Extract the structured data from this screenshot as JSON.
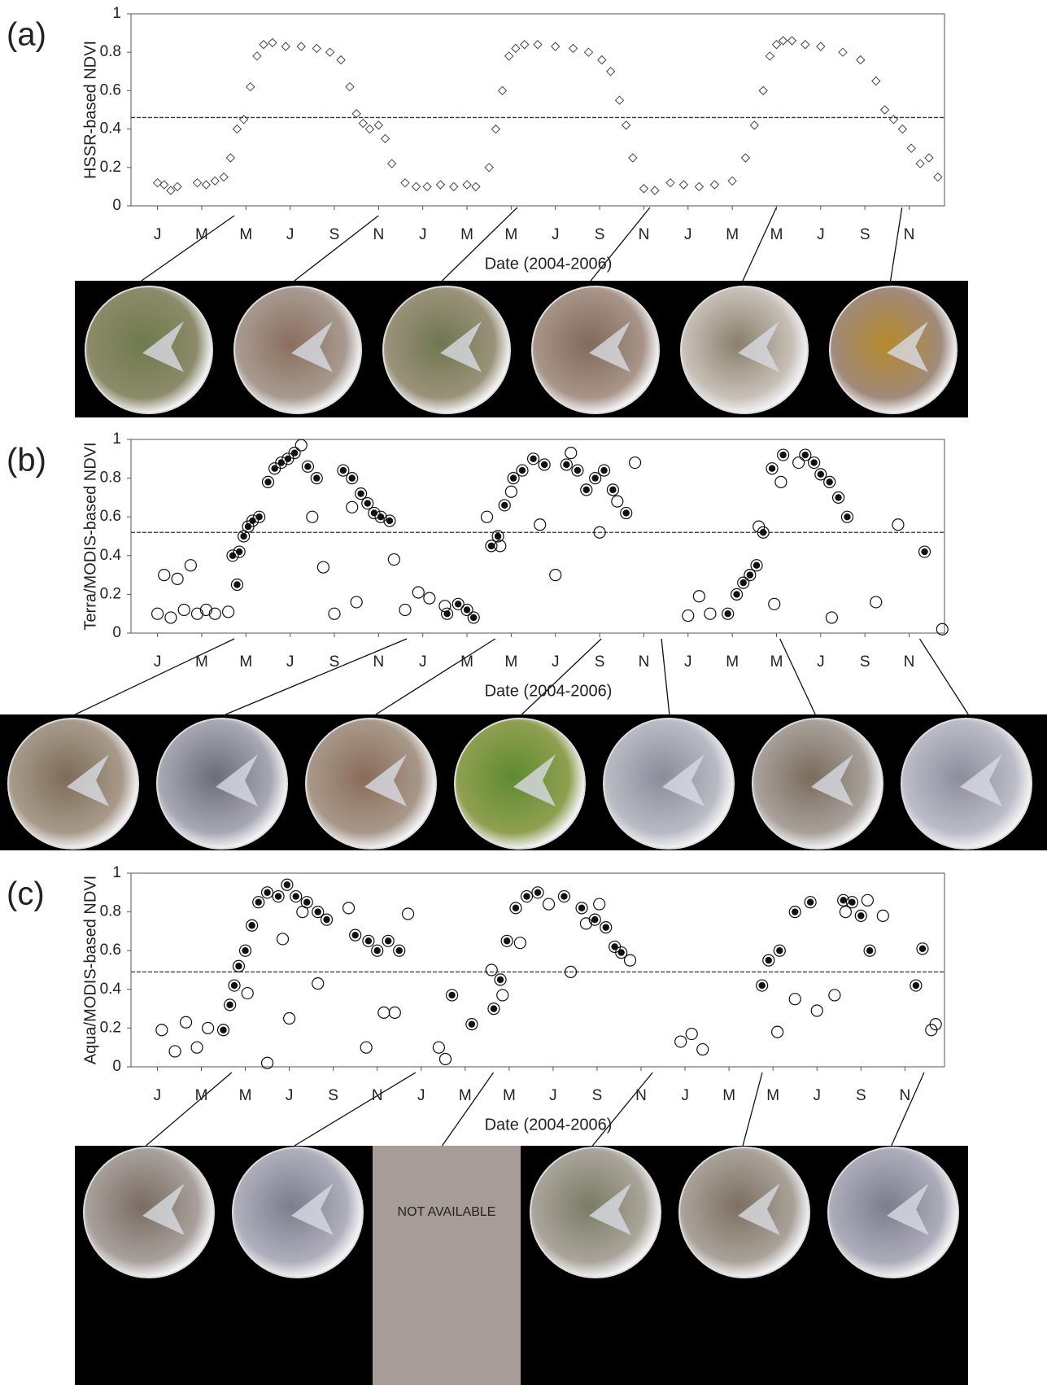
{
  "chart_data": [
    {
      "type": "scatter",
      "panel": "(a)",
      "ylabel": "HSSR-based NDVI",
      "xlabel": "Date (2004-2006)",
      "xlim": [
        -1.2,
        35.6
      ],
      "ylim": [
        0,
        1
      ],
      "yticks": [
        0,
        0.2,
        0.4,
        0.6,
        0.8,
        1
      ],
      "xticks": [
        {
          "value": 0,
          "label": "J"
        },
        {
          "value": 2,
          "label": "M"
        },
        {
          "value": 4,
          "label": "M"
        },
        {
          "value": 6,
          "label": "J"
        },
        {
          "value": 8,
          "label": "S"
        },
        {
          "value": 10,
          "label": "N"
        },
        {
          "value": 12,
          "label": "J"
        },
        {
          "value": 14,
          "label": "M"
        },
        {
          "value": 16,
          "label": "M"
        },
        {
          "value": 18,
          "label": "J"
        },
        {
          "value": 20,
          "label": "S"
        },
        {
          "value": 22,
          "label": "N"
        },
        {
          "value": 24,
          "label": "J"
        },
        {
          "value": 26,
          "label": "M"
        },
        {
          "value": 28,
          "label": "M"
        },
        {
          "value": 30,
          "label": "J"
        },
        {
          "value": 32,
          "label": "S"
        },
        {
          "value": 34,
          "label": "N"
        }
      ],
      "threshold": 0.46,
      "series": [
        {
          "marker": "diamond",
          "color": "#444444",
          "x": [
            0,
            0.3,
            0.6,
            0.9,
            1.8,
            2.2,
            2.6,
            3.0,
            3.3,
            3.6,
            3.9,
            4.2,
            4.5,
            4.8,
            5.2,
            5.8,
            6.5,
            7.2,
            7.8,
            8.3,
            8.7,
            9.0,
            9.3,
            9.6,
            10.0,
            10.3,
            10.6,
            11.2,
            11.7,
            12.2,
            12.8,
            13.4,
            14.0,
            14.4,
            15.0,
            15.3,
            15.6,
            15.9,
            16.2,
            16.6,
            17.2,
            18.0,
            18.8,
            19.5,
            20.1,
            20.5,
            20.9,
            21.2,
            21.5,
            22.0,
            22.5,
            23.2,
            23.8,
            24.5,
            25.2,
            26.0,
            26.6,
            27.0,
            27.4,
            27.7,
            28.0,
            28.3,
            28.7,
            29.3,
            30.0,
            31.0,
            31.8,
            32.5,
            32.9,
            33.3,
            33.7,
            34.1,
            34.5,
            34.9,
            35.3
          ],
          "values": [
            0.12,
            0.11,
            0.08,
            0.1,
            0.12,
            0.11,
            0.13,
            0.15,
            0.25,
            0.4,
            0.45,
            0.62,
            0.78,
            0.84,
            0.85,
            0.83,
            0.83,
            0.82,
            0.8,
            0.76,
            0.62,
            0.48,
            0.43,
            0.4,
            0.42,
            0.35,
            0.22,
            0.12,
            0.1,
            0.1,
            0.11,
            0.1,
            0.11,
            0.1,
            0.2,
            0.4,
            0.6,
            0.78,
            0.82,
            0.84,
            0.84,
            0.83,
            0.82,
            0.8,
            0.76,
            0.7,
            0.55,
            0.42,
            0.25,
            0.09,
            0.08,
            0.12,
            0.11,
            0.1,
            0.11,
            0.13,
            0.25,
            0.42,
            0.6,
            0.78,
            0.84,
            0.86,
            0.86,
            0.84,
            0.83,
            0.8,
            0.76,
            0.65,
            0.5,
            0.45,
            0.4,
            0.3,
            0.22,
            0.25,
            0.15
          ]
        }
      ]
    },
    {
      "type": "scatter",
      "panel": "(b)",
      "ylabel": "Terra/MODIS-based NDVI",
      "xlabel": "Date (2004-2006)",
      "xlim": [
        -1.2,
        35.6
      ],
      "ylim": [
        0,
        1
      ],
      "yticks": [
        0,
        0.2,
        0.4,
        0.6,
        0.8,
        1
      ],
      "xticks": [
        {
          "value": 0,
          "label": "J"
        },
        {
          "value": 2,
          "label": "M"
        },
        {
          "value": 4,
          "label": "M"
        },
        {
          "value": 6,
          "label": "J"
        },
        {
          "value": 8,
          "label": "S"
        },
        {
          "value": 10,
          "label": "N"
        },
        {
          "value": 12,
          "label": "J"
        },
        {
          "value": 14,
          "label": "M"
        },
        {
          "value": 16,
          "label": "M"
        },
        {
          "value": 18,
          "label": "J"
        },
        {
          "value": 20,
          "label": "S"
        },
        {
          "value": 22,
          "label": "N"
        },
        {
          "value": 24,
          "label": "J"
        },
        {
          "value": 26,
          "label": "M"
        },
        {
          "value": 28,
          "label": "M"
        },
        {
          "value": 30,
          "label": "J"
        },
        {
          "value": 32,
          "label": "S"
        },
        {
          "value": 34,
          "label": "N"
        }
      ],
      "threshold": 0.52,
      "series": [
        {
          "marker": "filled",
          "color": "#111111",
          "x": [
            3.4,
            3.6,
            3.7,
            3.9,
            4.1,
            4.3,
            4.6,
            5.0,
            5.3,
            5.6,
            5.9,
            6.2,
            6.8,
            7.2,
            8.4,
            8.8,
            9.2,
            9.5,
            9.8,
            10.1,
            10.5,
            13.1,
            13.6,
            14.0,
            14.3,
            15.1,
            15.4,
            15.7,
            16.1,
            16.5,
            17.0,
            17.5,
            18.5,
            19.0,
            19.4,
            19.8,
            20.2,
            20.6,
            21.2,
            25.8,
            26.2,
            26.5,
            26.8,
            27.1,
            27.4,
            27.8,
            28.3,
            29.3,
            29.7,
            30.0,
            30.4,
            30.8,
            31.2,
            34.7
          ],
          "values": [
            0.4,
            0.25,
            0.42,
            0.5,
            0.55,
            0.58,
            0.6,
            0.78,
            0.85,
            0.88,
            0.9,
            0.93,
            0.86,
            0.8,
            0.84,
            0.8,
            0.72,
            0.67,
            0.62,
            0.6,
            0.58,
            0.1,
            0.15,
            0.12,
            0.08,
            0.45,
            0.5,
            0.66,
            0.8,
            0.84,
            0.9,
            0.87,
            0.87,
            0.84,
            0.74,
            0.8,
            0.84,
            0.74,
            0.62,
            0.1,
            0.2,
            0.26,
            0.3,
            0.35,
            0.52,
            0.85,
            0.92,
            0.92,
            0.88,
            0.82,
            0.78,
            0.7,
            0.6,
            0.42
          ]
        },
        {
          "marker": "open",
          "color": "#111111",
          "x": [
            0,
            0.3,
            0.6,
            0.9,
            1.2,
            1.5,
            1.8,
            2.2,
            2.6,
            3.2,
            6.5,
            7.0,
            7.5,
            8.0,
            9.0,
            8.8,
            10.7,
            11.2,
            11.8,
            12.3,
            13.0,
            14.9,
            15.5,
            16.0,
            17.3,
            18.0,
            18.7,
            20.0,
            20.8,
            21.6,
            24.0,
            24.5,
            25.0,
            27.2,
            27.9,
            28.2,
            29.0,
            30.5,
            32.5,
            33.5,
            35.5
          ],
          "values": [
            0.1,
            0.3,
            0.08,
            0.28,
            0.12,
            0.35,
            0.1,
            0.12,
            0.1,
            0.11,
            0.97,
            0.6,
            0.34,
            0.1,
            0.16,
            0.65,
            0.38,
            0.12,
            0.21,
            0.18,
            0.14,
            0.6,
            0.45,
            0.73,
            0.56,
            0.3,
            0.93,
            0.52,
            0.68,
            0.88,
            0.09,
            0.19,
            0.1,
            0.55,
            0.15,
            0.78,
            0.88,
            0.08,
            0.16,
            0.56,
            0.02
          ]
        }
      ]
    },
    {
      "type": "scatter",
      "panel": "(c)",
      "ylabel": "Aqua/MODIS-based NDVI",
      "xlabel": "Date (2004-2006)",
      "xlim": [
        -1.2,
        35.8
      ],
      "ylim": [
        0,
        1
      ],
      "yticks": [
        0,
        0.2,
        0.4,
        0.6,
        0.8,
        1
      ],
      "xticks": [
        {
          "value": 0,
          "label": "J"
        },
        {
          "value": 2,
          "label": "M"
        },
        {
          "value": 4,
          "label": "M"
        },
        {
          "value": 6,
          "label": "J"
        },
        {
          "value": 8,
          "label": "S"
        },
        {
          "value": 10,
          "label": "N"
        },
        {
          "value": 12,
          "label": "J"
        },
        {
          "value": 14,
          "label": "M"
        },
        {
          "value": 16,
          "label": "M"
        },
        {
          "value": 18,
          "label": "J"
        },
        {
          "value": 20,
          "label": "S"
        },
        {
          "value": 22,
          "label": "N"
        },
        {
          "value": 24,
          "label": "J"
        },
        {
          "value": 26,
          "label": "M"
        },
        {
          "value": 28,
          "label": "M"
        },
        {
          "value": 30,
          "label": "J"
        },
        {
          "value": 32,
          "label": "S"
        },
        {
          "value": 34,
          "label": "N"
        }
      ],
      "threshold": 0.49,
      "series": [
        {
          "marker": "filled",
          "color": "#111111",
          "x": [
            3.0,
            3.3,
            3.5,
            3.7,
            4.0,
            4.3,
            4.6,
            5.0,
            5.5,
            5.9,
            6.3,
            6.8,
            7.3,
            7.7,
            9.0,
            9.6,
            10.0,
            10.5,
            11.0,
            13.4,
            14.3,
            15.3,
            15.6,
            15.9,
            16.3,
            16.8,
            17.3,
            18.5,
            19.3,
            19.9,
            20.4,
            20.8,
            21.1,
            27.5,
            27.8,
            28.3,
            29.0,
            29.7,
            31.2,
            31.6,
            32.0,
            32.4,
            34.5,
            34.8
          ],
          "values": [
            0.19,
            0.32,
            0.42,
            0.52,
            0.6,
            0.73,
            0.85,
            0.9,
            0.88,
            0.94,
            0.88,
            0.85,
            0.8,
            0.76,
            0.68,
            0.65,
            0.6,
            0.65,
            0.6,
            0.37,
            0.22,
            0.3,
            0.45,
            0.65,
            0.82,
            0.88,
            0.9,
            0.88,
            0.82,
            0.76,
            0.72,
            0.62,
            0.59,
            0.42,
            0.55,
            0.6,
            0.8,
            0.85,
            0.86,
            0.85,
            0.78,
            0.6,
            0.42,
            0.61
          ]
        },
        {
          "marker": "open",
          "color": "#111111",
          "x": [
            0.2,
            0.8,
            1.3,
            1.8,
            2.3,
            4.1,
            5.0,
            5.7,
            6.0,
            6.6,
            7.3,
            8.7,
            9.5,
            10.3,
            10.8,
            11.4,
            12.8,
            13.1,
            15.2,
            15.7,
            16.5,
            17.8,
            18.8,
            19.5,
            20.1,
            21.5,
            23.8,
            24.3,
            24.8,
            28.2,
            29.0,
            30.0,
            30.8,
            31.3,
            32.3,
            33.0,
            35.2,
            35.4
          ],
          "values": [
            0.19,
            0.08,
            0.23,
            0.1,
            0.2,
            0.38,
            0.02,
            0.66,
            0.25,
            0.8,
            0.43,
            0.82,
            0.1,
            0.28,
            0.28,
            0.79,
            0.1,
            0.04,
            0.5,
            0.37,
            0.64,
            0.84,
            0.49,
            0.74,
            0.84,
            0.55,
            0.13,
            0.17,
            0.09,
            0.18,
            0.35,
            0.29,
            0.37,
            0.8,
            0.86,
            0.78,
            0.19,
            0.22
          ]
        }
      ]
    }
  ],
  "photo_strip_c": {
    "placeholder": "NOT AVAILABLE"
  }
}
